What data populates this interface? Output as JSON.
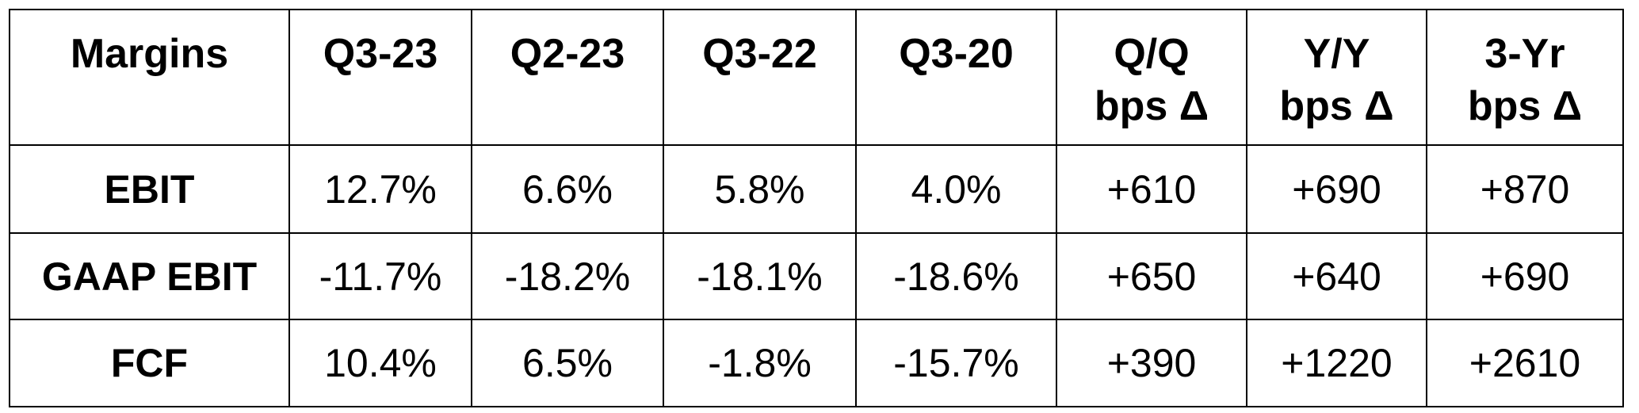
{
  "table": {
    "header": [
      [
        "Margins"
      ],
      [
        "Q3-23"
      ],
      [
        "Q2-23"
      ],
      [
        "Q3-22"
      ],
      [
        "Q3-20"
      ],
      [
        "Q/Q",
        "bps Δ"
      ],
      [
        "Y/Y",
        "bps Δ"
      ],
      [
        "3-Yr",
        "bps Δ"
      ]
    ],
    "rows": [
      [
        "EBIT",
        "12.7%",
        "6.6%",
        "5.8%",
        "4.0%",
        "+610",
        "+690",
        "+870"
      ],
      [
        "GAAP EBIT",
        "-11.7%",
        "-18.2%",
        "-18.1%",
        "-18.6%",
        "+650",
        "+640",
        "+690"
      ],
      [
        "FCF",
        "10.4%",
        "6.5%",
        "-1.8%",
        "-15.7%",
        "+390",
        "+1220",
        "+2610"
      ]
    ]
  }
}
